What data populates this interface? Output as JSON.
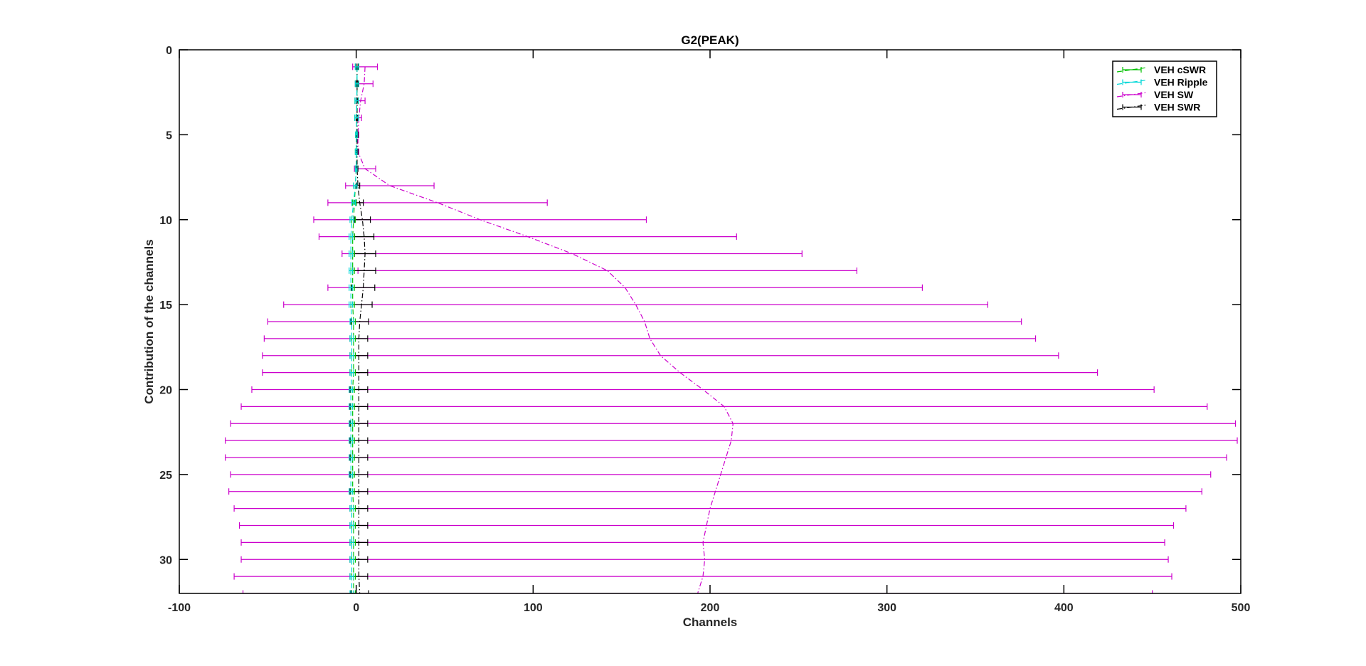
{
  "chart_data": {
    "type": "line",
    "title": "G2(PEAK)",
    "xlabel": "Channels",
    "ylabel": "Contribution of the channels",
    "xlim": [
      -100,
      500
    ],
    "ylim": [
      0,
      32
    ],
    "y_reversed": true,
    "x_ticks": [
      -100,
      0,
      100,
      200,
      300,
      400,
      500
    ],
    "y_ticks": [
      0,
      5,
      10,
      15,
      20,
      25,
      30
    ],
    "x_tick_labels": [
      "-100",
      "0",
      "100",
      "200",
      "300",
      "400",
      "500"
    ],
    "y_tick_labels": [
      "0",
      "5",
      "10",
      "15",
      "20",
      "25",
      "30"
    ],
    "orientation": "horizontal error bars, series value along x for each channel index along y",
    "grid": false,
    "legend_position": "top-right",
    "y": [
      1,
      2,
      3,
      4,
      5,
      6,
      7,
      8,
      9,
      10,
      11,
      12,
      13,
      14,
      15,
      16,
      17,
      18,
      19,
      20,
      21,
      22,
      23,
      24,
      25,
      26,
      27,
      28,
      29,
      30,
      31,
      32
    ],
    "series": [
      {
        "name": "VEH cSWR",
        "color": "#00c000",
        "line_style": "dash",
        "x": [
          0.5,
          0.5,
          0.3,
          0.2,
          0.1,
          0,
          0,
          -0.5,
          -1,
          -1.5,
          -2,
          -2,
          -2,
          -2,
          -2,
          -1.5,
          -1.5,
          -1.5,
          -1.5,
          -2,
          -2,
          -2,
          -2,
          -2,
          -2,
          -2,
          -1.5,
          -1.5,
          -1.5,
          -1.5,
          -1.5,
          -1.5
        ],
        "error": [
          1,
          1,
          1,
          1,
          0.5,
          0.5,
          0.5,
          1,
          1,
          1,
          1,
          1,
          1,
          1,
          1,
          1,
          1,
          1,
          1,
          1,
          1,
          1,
          1,
          1,
          1,
          1,
          1,
          1,
          1,
          1,
          1,
          1
        ]
      },
      {
        "name": "VEH Ripple",
        "color": "#00d8d8",
        "line_style": "dash",
        "x": [
          0.5,
          0.5,
          0.3,
          0.2,
          0.1,
          0,
          0,
          -0.5,
          -1.5,
          -2.5,
          -3,
          -3,
          -3,
          -3,
          -3,
          -2.5,
          -2.5,
          -2.5,
          -2.5,
          -3,
          -3,
          -3,
          -3,
          -3,
          -3,
          -3,
          -2.5,
          -2.5,
          -2.5,
          -2.5,
          -2.5,
          -2.5
        ],
        "error": [
          1,
          1,
          1,
          1,
          0.5,
          0.5,
          0.5,
          1,
          1,
          1,
          1,
          1,
          1,
          1,
          1,
          1,
          1,
          1,
          1,
          1,
          1,
          1,
          1,
          1,
          1,
          1,
          1,
          1,
          1,
          1,
          1,
          1
        ]
      },
      {
        "name": "VEH SW",
        "color": "#cc00cc",
        "line_style": "dashdot",
        "x": [
          5,
          4.5,
          2.5,
          1.5,
          1,
          1,
          5,
          19,
          46,
          70,
          97,
          122,
          142,
          152,
          158,
          163,
          166,
          172,
          183,
          196,
          208,
          213,
          212,
          209,
          206,
          203,
          200,
          198,
          196,
          197,
          196,
          193
        ],
        "error": [
          7,
          5,
          2.5,
          1.5,
          0.5,
          0.5,
          6,
          25,
          62,
          94,
          118,
          130,
          141,
          168,
          199,
          213,
          218,
          225,
          236,
          255,
          273,
          284,
          286,
          283,
          277,
          275,
          269,
          264,
          261,
          262,
          265,
          257
        ]
      },
      {
        "name": "VEH SWR",
        "color": "#000000",
        "line_style": "dashdot",
        "x": [
          0.5,
          0.5,
          0.5,
          0.5,
          0.5,
          0.5,
          0.5,
          1,
          2,
          3.5,
          4.5,
          5,
          4.5,
          4,
          3,
          2,
          1.5,
          1.5,
          1.5,
          1.5,
          1.5,
          1.5,
          1.5,
          1.5,
          1.5,
          1.5,
          1.5,
          1.5,
          1.5,
          1.5,
          1.5,
          2
        ],
        "error": [
          0.5,
          0.5,
          0.5,
          0.5,
          0.5,
          0.5,
          0.5,
          1,
          2,
          4.5,
          5.5,
          6,
          6.5,
          6.5,
          6,
          5,
          5,
          5,
          5,
          5,
          5,
          5,
          5,
          5,
          5,
          5,
          5,
          5,
          5,
          5,
          5,
          5
        ]
      }
    ]
  }
}
